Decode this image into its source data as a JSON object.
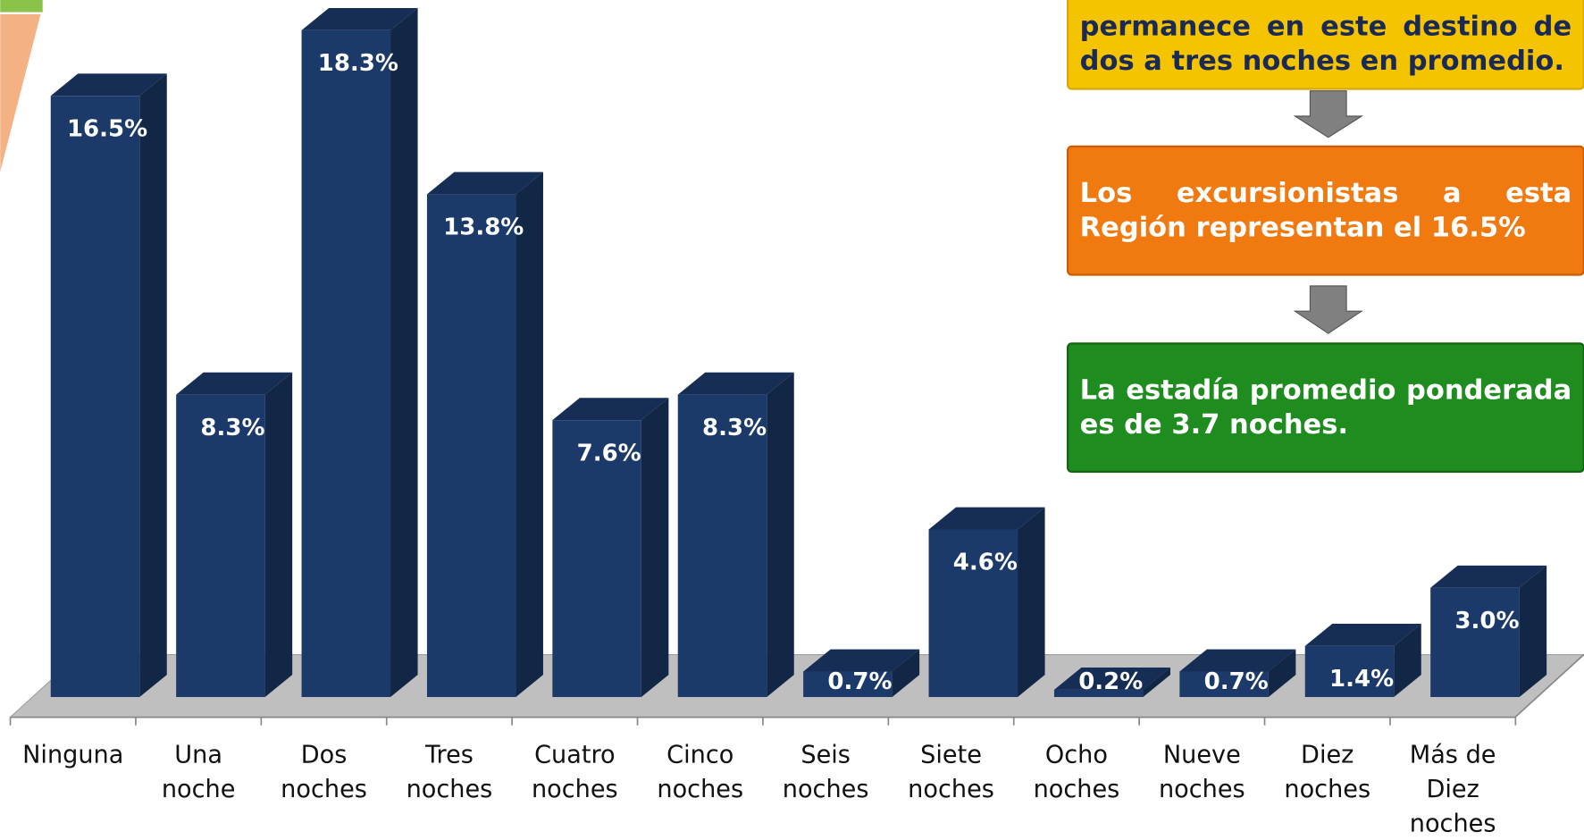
{
  "chart_data": {
    "type": "bar3d",
    "categories": [
      [
        "Ninguna"
      ],
      [
        "Una",
        "noche"
      ],
      [
        "Dos",
        "noches"
      ],
      [
        "Tres",
        "noches"
      ],
      [
        "Cuatro",
        "noches"
      ],
      [
        "Cinco",
        "noches"
      ],
      [
        "Seis",
        "noches"
      ],
      [
        "Siete",
        "noches"
      ],
      [
        "Ocho",
        "noches"
      ],
      [
        "Nueve",
        "noches"
      ],
      [
        "Diez",
        "noches"
      ],
      [
        "Más de",
        "Diez",
        "noches"
      ]
    ],
    "values": [
      16.5,
      8.3,
      18.3,
      13.8,
      7.6,
      8.3,
      0.7,
      4.6,
      0.2,
      0.7,
      1.4,
      3.0
    ],
    "value_labels": [
      "16.5%",
      "8.3%",
      "18.3%",
      "13.8%",
      "7.6%",
      "8.3%",
      "0.7%",
      "4.6%",
      "0.2%",
      "0.7%",
      "1.4%",
      "3.0%"
    ],
    "color": "#1b3a6a"
  },
  "notes": [
    "permanece en este destino de dos a tres noches en promedio.",
    "Los excursionistas a esta Región representan el 16.5%",
    "La estadía promedio ponderada es de 3.7 noches."
  ]
}
